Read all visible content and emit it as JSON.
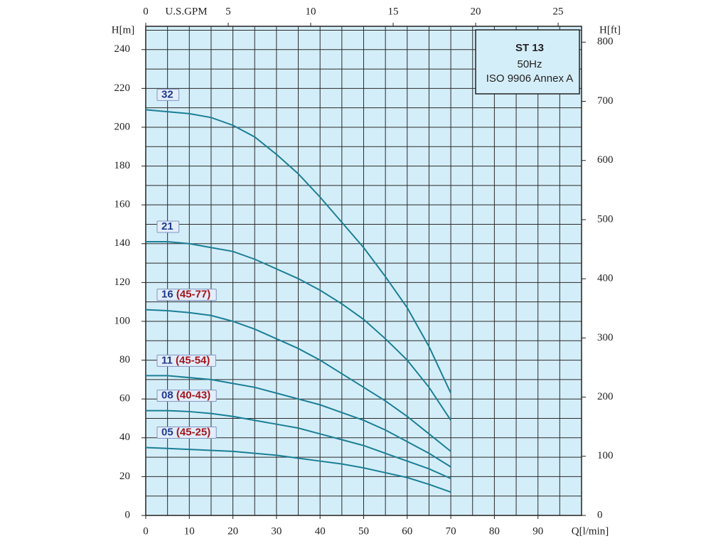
{
  "chart_data": {
    "type": "line",
    "title": "ST 13",
    "subtitle": "50Hz",
    "standard": "ISO 9906 Annex A",
    "xlabel": "Q[l/min]",
    "ylabel": "H[m]",
    "y2label": "H[ft]",
    "x2label": "U.S.GPM",
    "x": [
      0,
      5,
      10,
      15,
      20,
      25,
      30,
      35,
      40,
      45,
      50,
      55,
      60,
      65,
      70
    ],
    "xlim": [
      0,
      100
    ],
    "xticks": [
      0,
      10,
      20,
      30,
      40,
      50,
      60,
      70,
      80,
      90
    ],
    "x2lim": [
      0,
      26.42
    ],
    "x2ticks": [
      0,
      5,
      10,
      15,
      20,
      25
    ],
    "ylim": [
      0,
      252
    ],
    "yticks": [
      0,
      20,
      40,
      60,
      80,
      100,
      120,
      140,
      160,
      180,
      200,
      220,
      240
    ],
    "y2lim": [
      0,
      826.8
    ],
    "y2ticks": [
      0,
      100,
      200,
      300,
      400,
      500,
      600,
      700,
      800
    ],
    "xgrid": [
      0,
      5,
      10,
      15,
      20,
      25,
      30,
      35,
      40,
      45,
      50,
      55,
      60,
      65,
      70,
      75,
      80,
      85,
      90,
      95,
      100
    ],
    "ygrid": [
      0,
      10,
      20,
      30,
      40,
      50,
      60,
      70,
      80,
      90,
      100,
      110,
      120,
      130,
      140,
      150,
      160,
      170,
      180,
      190,
      200,
      210,
      220,
      230,
      240,
      250
    ],
    "grid": true,
    "background": "#d4eef9",
    "series": [
      {
        "name": "32",
        "color": "#1b7f96",
        "values": [
          209,
          208,
          207,
          205,
          201,
          195,
          186,
          176,
          164,
          151,
          138,
          123,
          107,
          87,
          63
        ]
      },
      {
        "name": "21",
        "color": "#1b7f96",
        "values": [
          141,
          141,
          140,
          138,
          136,
          132,
          127,
          122,
          116,
          109,
          101,
          91,
          80,
          66,
          49
        ]
      },
      {
        "name": "16",
        "range": "(45-77)",
        "color": "#1b7f96",
        "values": [
          106,
          105.5,
          104.5,
          103,
          100,
          96,
          91,
          86,
          80,
          73,
          66,
          59,
          51,
          42,
          33
        ]
      },
      {
        "name": "11",
        "range": "(45-54)",
        "color": "#1b7f96",
        "values": [
          72,
          72,
          71,
          70,
          68,
          66,
          63,
          60,
          57,
          53,
          49,
          44,
          38,
          32,
          25
        ]
      },
      {
        "name": "08",
        "range": "(40-43)",
        "color": "#1b7f96",
        "values": [
          54,
          54,
          53.5,
          52.5,
          51,
          49,
          47,
          45,
          42,
          39,
          36,
          32,
          28,
          24,
          19
        ]
      },
      {
        "name": "05",
        "range": "(45-25)",
        "color": "#1b7f96",
        "values": [
          35,
          34.5,
          34,
          33.5,
          33,
          32,
          31,
          29.5,
          28,
          26.5,
          24.5,
          22,
          19.5,
          16,
          12
        ]
      }
    ]
  }
}
